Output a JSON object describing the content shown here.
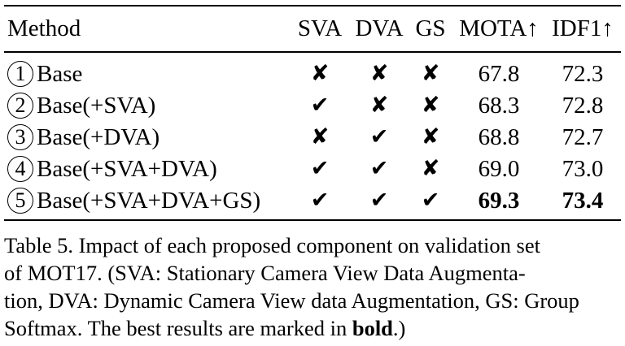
{
  "table": {
    "headers": {
      "method": "Method",
      "sva": "SVA",
      "dva": "DVA",
      "gs": "GS",
      "mota": "MOTA↑",
      "idf1": "IDF1↑"
    },
    "rows": [
      {
        "num": "1",
        "method": "Base",
        "sva": "✘",
        "dva": "✘",
        "gs": "✘",
        "mota": "67.8",
        "idf1": "72.3",
        "bold": false
      },
      {
        "num": "2",
        "method": "Base(+SVA)",
        "sva": "✔",
        "dva": "✘",
        "gs": "✘",
        "mota": "68.3",
        "idf1": "72.8",
        "bold": false
      },
      {
        "num": "3",
        "method": "Base(+DVA)",
        "sva": "✘",
        "dva": "✔",
        "gs": "✘",
        "mota": "68.8",
        "idf1": "72.7",
        "bold": false
      },
      {
        "num": "4",
        "method": "Base(+SVA+DVA)",
        "sva": "✔",
        "dva": "✔",
        "gs": "✘",
        "mota": "69.0",
        "idf1": "73.0",
        "bold": false
      },
      {
        "num": "5",
        "method": "Base(+SVA+DVA+GS)",
        "sva": "✔",
        "dva": "✔",
        "gs": "✔",
        "mota": "69.3",
        "idf1": "73.4",
        "bold": true
      }
    ]
  },
  "caption": {
    "line1": "Table 5.  Impact of each proposed component on validation set",
    "line2": "of MOT17.  (SVA: Stationary Camera View Data Augmenta-",
    "line3": "tion, DVA: Dynamic Camera View data Augmentation, GS: Group",
    "line4_pre": "Softmax. The best results are marked in ",
    "line4_bold": "bold",
    "line4_post": ".)"
  }
}
